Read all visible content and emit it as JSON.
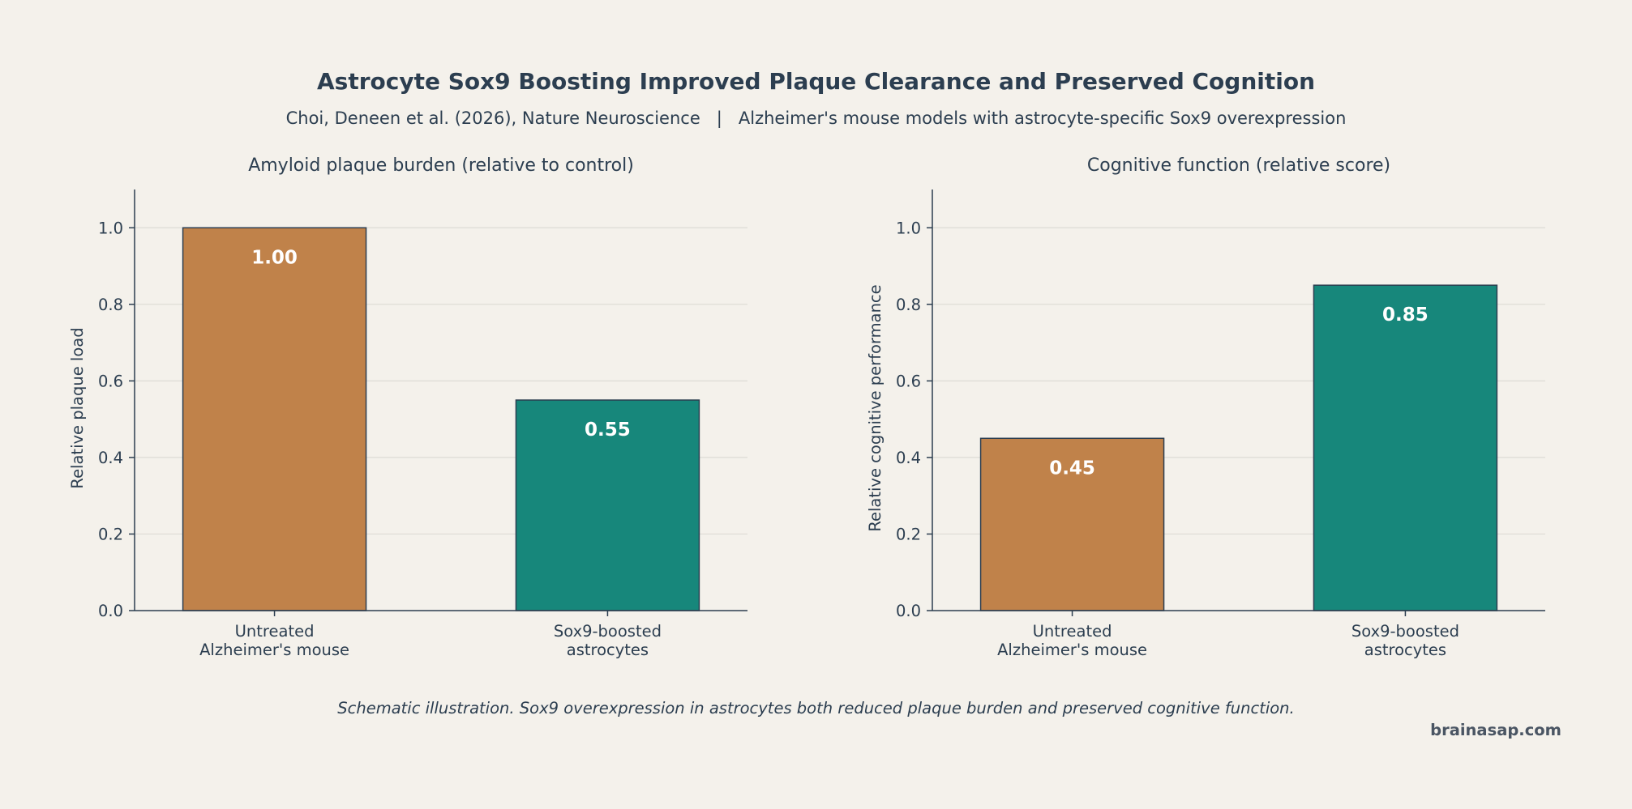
{
  "title": "Astrocyte Sox9 Boosting Improved Plaque Clearance and Preserved Cognition",
  "subtitle": "Choi, Deneen et al. (2026), Nature Neuroscience   |   Alzheimer's mouse models with astrocyte-specific Sox9 overexpression",
  "caption": "Schematic illustration. Sox9 overexpression in astrocytes both reduced plaque burden and preserved cognitive function.",
  "watermark": "brainasap.com",
  "colors": {
    "untreated": "#c0824a",
    "sox9": "#17877b",
    "axis": "#2c3e50",
    "grid": "#dddbd5",
    "background": "#f4f1eb"
  },
  "chart_data": [
    {
      "type": "bar",
      "title": "Amyloid plaque burden (relative to control)",
      "xlabel": "",
      "ylabel": "Relative plaque load",
      "categories": [
        [
          "Untreated",
          "Alzheimer's mouse"
        ],
        [
          "Sox9-boosted",
          "astrocytes"
        ]
      ],
      "values": [
        1.0,
        0.55
      ],
      "value_labels": [
        "1.00",
        "0.55"
      ],
      "bar_colors": [
        "#c0824a",
        "#17877b"
      ],
      "ylim": [
        0,
        1.1
      ],
      "yticks": [
        0.0,
        0.2,
        0.4,
        0.6,
        0.8,
        1.0
      ],
      "ytick_labels": [
        "0.0",
        "0.2",
        "0.4",
        "0.6",
        "0.8",
        "1.0"
      ],
      "grid": "y"
    },
    {
      "type": "bar",
      "title": "Cognitive function (relative score)",
      "xlabel": "",
      "ylabel": "Relative cognitive performance",
      "categories": [
        [
          "Untreated",
          "Alzheimer's mouse"
        ],
        [
          "Sox9-boosted",
          "astrocytes"
        ]
      ],
      "values": [
        0.45,
        0.85
      ],
      "value_labels": [
        "0.45",
        "0.85"
      ],
      "bar_colors": [
        "#c0824a",
        "#17877b"
      ],
      "ylim": [
        0,
        1.1
      ],
      "yticks": [
        0.0,
        0.2,
        0.4,
        0.6,
        0.8,
        1.0
      ],
      "ytick_labels": [
        "0.0",
        "0.2",
        "0.4",
        "0.6",
        "0.8",
        "1.0"
      ],
      "grid": "y"
    }
  ]
}
